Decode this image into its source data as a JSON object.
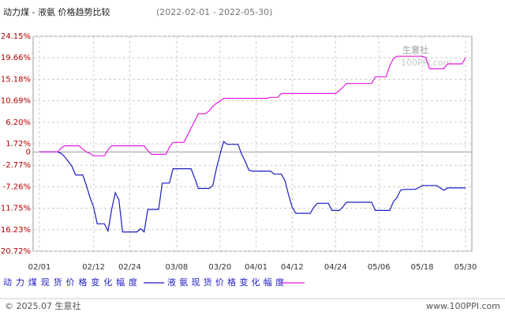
{
  "chart_data": {
    "type": "line",
    "title": "动力煤 - 液氨 价格趋势比较",
    "subtitle": "(2022-02-01 - 2022-05-30)",
    "watermark": [
      "生意社",
      "100PPI.com"
    ],
    "footer": [
      "© 2025.07 生意社",
      "www.100PPI.com"
    ],
    "categories": [
      "02/01",
      null,
      null,
      null,
      null,
      null,
      null,
      null,
      null,
      null,
      null,
      null,
      null,
      null,
      null,
      "02/12",
      null,
      null,
      null,
      null,
      null,
      null,
      null,
      null,
      null,
      "02/24",
      null,
      null,
      null,
      null,
      null,
      null,
      null,
      null,
      null,
      null,
      null,
      null,
      "03/08",
      null,
      null,
      null,
      null,
      null,
      null,
      null,
      null,
      null,
      null,
      null,
      "03/20",
      null,
      null,
      null,
      null,
      null,
      null,
      null,
      null,
      null,
      "04/01",
      null,
      null,
      null,
      null,
      null,
      null,
      null,
      null,
      null,
      "04/12",
      null,
      null,
      null,
      null,
      null,
      null,
      null,
      null,
      null,
      null,
      null,
      "04/24",
      null,
      null,
      null,
      null,
      null,
      null,
      null,
      null,
      null,
      null,
      null,
      "05/06",
      null,
      null,
      null,
      null,
      null,
      null,
      null,
      null,
      null,
      null,
      null,
      "05/18",
      null,
      null,
      null,
      null,
      null,
      null,
      null,
      null,
      null,
      null,
      null,
      "05/30"
    ],
    "series": [
      {
        "name": "动力煤现货价格变化幅度",
        "color": "#1c1cc4",
        "values": [
          0,
          0,
          0,
          0,
          0,
          0,
          -0.3,
          -1,
          -2,
          -3,
          -4.8,
          -4.8,
          -4.8,
          -7,
          -9.5,
          -11.5,
          -15,
          -15,
          -15,
          -16.5,
          -12,
          -8.5,
          -10,
          -16.7,
          -16.7,
          -16.7,
          -16.7,
          -16.7,
          -16,
          -16.7,
          -12,
          -12,
          -12,
          -12,
          -6.5,
          -6.5,
          -6.5,
          -3.5,
          -3.5,
          -3.5,
          -3.5,
          -3.5,
          -3.5,
          -5.5,
          -7.6,
          -7.6,
          -7.6,
          -7.6,
          -7,
          -3.5,
          -0.5,
          2.2,
          1.6,
          1.6,
          1.6,
          1.6,
          -0.5,
          -2,
          -3.8,
          -4,
          -4,
          -4,
          -4,
          -4,
          -4,
          -4.6,
          -4.6,
          -4.6,
          -6,
          -9,
          -11.5,
          -12.8,
          -12.8,
          -12.8,
          -12.8,
          -12.8,
          -11.5,
          -10.7,
          -10.7,
          -10.7,
          -10.7,
          -12.2,
          -12.2,
          -12.2,
          -11.5,
          -10.5,
          -10.5,
          -10.5,
          -10.5,
          -10.5,
          -10.5,
          -10.5,
          -10.5,
          -12.2,
          -12.2,
          -12.2,
          -12.2,
          -12.2,
          -10.4,
          -9.5,
          -8,
          -7.8,
          -7.8,
          -7.8,
          -7.8,
          -7.5,
          -7,
          -7,
          -7,
          -7,
          -7,
          -7.5,
          -8,
          -7.5,
          -7.5,
          -7.5,
          -7.5,
          -7.5,
          -7.5
        ]
      },
      {
        "name": "液氨现货价格变化幅度",
        "color": "#e21de2",
        "values": [
          0,
          0,
          0,
          0,
          0,
          0,
          0.8,
          1.3,
          1.3,
          1.3,
          1.3,
          1.3,
          0.6,
          0,
          -0.3,
          -0.8,
          -0.8,
          -0.8,
          -0.8,
          0.5,
          1.3,
          1.3,
          1.3,
          1.3,
          1.3,
          1.3,
          1.3,
          1.3,
          1.3,
          1.3,
          0.3,
          -0.5,
          -0.5,
          -0.5,
          -0.5,
          -0.5,
          1.0,
          2,
          2,
          2,
          2,
          3.5,
          5,
          6.5,
          8,
          8,
          8,
          8.6,
          9.5,
          10.2,
          10.6,
          11.2,
          11.2,
          11.2,
          11.2,
          11.2,
          11.2,
          11.2,
          11.2,
          11.2,
          11.2,
          11.2,
          11.2,
          11.2,
          11.4,
          11.4,
          11.4,
          12.2,
          12.2,
          12.2,
          12.2,
          12.2,
          12.2,
          12.2,
          12.2,
          12.2,
          12.2,
          12.2,
          12.2,
          12.2,
          12.2,
          12.2,
          12.2,
          12.8,
          13.5,
          14.3,
          14.3,
          14.3,
          14.3,
          14.3,
          14.3,
          14.3,
          14.3,
          15.7,
          15.7,
          15.7,
          15.7,
          18,
          19.5,
          20,
          20,
          20,
          20,
          20,
          20,
          20,
          20,
          19.7,
          17.4,
          17.4,
          17.4,
          17.4,
          17.4,
          18.4,
          18.4,
          18.4,
          18.4,
          18.4,
          19.7
        ]
      }
    ],
    "ylim": [
      -20.72,
      24.15
    ],
    "yticks": [
      {
        "value": 24.15,
        "label": "24.15%"
      },
      {
        "value": 19.66,
        "label": "19.66%"
      },
      {
        "value": 15.18,
        "label": "15.18%"
      },
      {
        "value": 10.69,
        "label": "10.69%"
      },
      {
        "value": 6.2,
        "label": "6.20%"
      },
      {
        "value": 1.72,
        "label": "1.72%"
      },
      0,
      {
        "value": -2.77,
        "label": "-2.77%"
      },
      {
        "value": -7.26,
        "label": "-7.26%"
      },
      {
        "value": -11.75,
        "label": "-11.75%"
      },
      {
        "value": -16.23,
        "label": "-16.23%"
      },
      {
        "value": -20.72,
        "label": "-20.72%"
      }
    ],
    "grid": true
  }
}
